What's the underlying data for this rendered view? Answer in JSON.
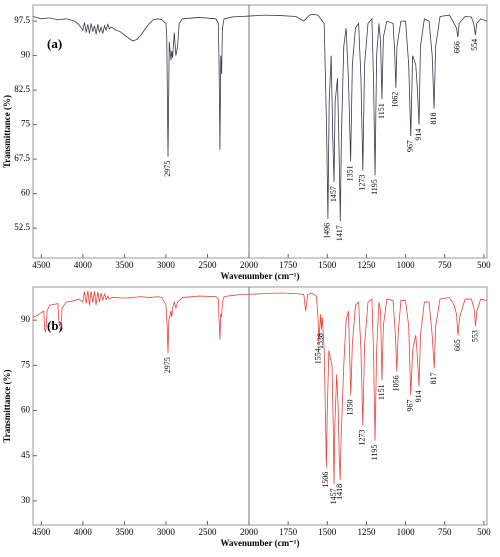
{
  "chart_data": [
    {
      "type": "line",
      "panel_label": "(a)",
      "xlabel": "Wavenumber (cm⁻¹)",
      "ylabel": "Transmittance (%)",
      "xlim": [
        4600,
        480
      ],
      "ylim": [
        46,
        101
      ],
      "x_scale_break": 2000,
      "xticks": [
        4500,
        4000,
        3500,
        3000,
        2500,
        2000,
        1750,
        1500,
        1250,
        1000,
        750,
        500
      ],
      "yticks": [
        52.5,
        60,
        67.5,
        75,
        82.5,
        90,
        97.5
      ],
      "x": [
        4600,
        4500,
        4400,
        4300,
        4200,
        4100,
        4050,
        4000,
        3980,
        3960,
        3940,
        3920,
        3900,
        3880,
        3860,
        3840,
        3820,
        3800,
        3780,
        3760,
        3740,
        3720,
        3700,
        3680,
        3660,
        3640,
        3620,
        3600,
        3550,
        3500,
        3450,
        3400,
        3350,
        3300,
        3250,
        3200,
        3150,
        3100,
        3050,
        3000,
        2990,
        2975,
        2960,
        2940,
        2930,
        2920,
        2900,
        2880,
        2870,
        2860,
        2840,
        2800,
        2600,
        2400,
        2370,
        2360,
        2350,
        2340,
        2330,
        2320,
        2300,
        2200,
        2100,
        2000,
        1900,
        1800,
        1700,
        1650,
        1620,
        1600,
        1560,
        1520,
        1505,
        1496,
        1488,
        1475,
        1465,
        1457,
        1450,
        1435,
        1425,
        1417,
        1410,
        1395,
        1380,
        1365,
        1351,
        1340,
        1320,
        1300,
        1285,
        1273,
        1262,
        1240,
        1215,
        1205,
        1195,
        1185,
        1170,
        1160,
        1151,
        1142,
        1120,
        1080,
        1070,
        1062,
        1055,
        1030,
        1000,
        980,
        967,
        955,
        935,
        925,
        914,
        905,
        880,
        850,
        830,
        818,
        808,
        780,
        720,
        690,
        675,
        666,
        658,
        620,
        580,
        565,
        554,
        545,
        520,
        480
      ],
      "series": [
        {
          "color": "#3a3a4a",
          "values": [
            98.5,
            98,
            98.2,
            97.8,
            98,
            97.5,
            96.8,
            95.5,
            97.2,
            95,
            96.8,
            94.8,
            97,
            95.2,
            96.5,
            94.6,
            96.8,
            95,
            96.2,
            94.8,
            96.5,
            95.5,
            96.8,
            95.8,
            96.2,
            96,
            95.8,
            95.5,
            95.2,
            94.5,
            93.8,
            93.2,
            93.5,
            94.5,
            95.8,
            97,
            97.8,
            98,
            97.8,
            97,
            94,
            68,
            93,
            89,
            91,
            89.5,
            95,
            90,
            91,
            92,
            97,
            98,
            98.3,
            98,
            97,
            88,
            69.5,
            90,
            86,
            96,
            98,
            98.4,
            98.5,
            98.6,
            98.8,
            98.7,
            98.5,
            97.5,
            98.6,
            99,
            98.8,
            97,
            75,
            54.5,
            80,
            90,
            72,
            62.5,
            80,
            85,
            70,
            54,
            72,
            92,
            96,
            85,
            67,
            88,
            96,
            97,
            85,
            65,
            88,
            97,
            98,
            85,
            64,
            90,
            97,
            93,
            80.5,
            94,
            97.5,
            97,
            91,
            83,
            92,
            97.5,
            97.5,
            88,
            72.5,
            90,
            88,
            83,
            75,
            92,
            98,
            97.5,
            90,
            78.5,
            92,
            98.5,
            98.8,
            97,
            96,
            94,
            97,
            98.5,
            98.4,
            97,
            94.5,
            97,
            98,
            97.5
          ]
        }
      ],
      "peaks": [
        2975,
        1496,
        1457,
        1417,
        1351,
        1273,
        1195,
        1151,
        1062,
        967,
        914,
        818,
        666,
        554
      ]
    },
    {
      "type": "line",
      "panel_label": "(b)",
      "xlabel": "Wavenumber (cm⁻¹)",
      "ylabel": "Transmittance (%)",
      "xlim": [
        4600,
        480
      ],
      "ylim": [
        22,
        101
      ],
      "x_scale_break": 2000,
      "xticks": [
        4500,
        4000,
        3500,
        3000,
        2500,
        2000,
        1750,
        1500,
        1250,
        1000,
        750,
        500
      ],
      "yticks": [
        30,
        45,
        60,
        75,
        90
      ],
      "x": [
        4600,
        4550,
        4500,
        4470,
        4460,
        4450,
        4440,
        4430,
        4400,
        4300,
        4290,
        4280,
        4270,
        4260,
        4250,
        4200,
        4100,
        4050,
        4000,
        3980,
        3960,
        3940,
        3920,
        3900,
        3880,
        3860,
        3840,
        3820,
        3800,
        3780,
        3760,
        3740,
        3720,
        3700,
        3680,
        3650,
        3600,
        3500,
        3400,
        3300,
        3200,
        3100,
        3050,
        3000,
        2985,
        2975,
        2965,
        2940,
        2930,
        2920,
        2900,
        2880,
        2870,
        2860,
        2800,
        2600,
        2400,
        2370,
        2360,
        2350,
        2340,
        2330,
        2320,
        2300,
        2200,
        2100,
        2000,
        1900,
        1800,
        1700,
        1650,
        1638,
        1625,
        1600,
        1570,
        1560,
        1554,
        1548,
        1542,
        1538,
        1532,
        1520,
        1512,
        1506,
        1500,
        1490,
        1470,
        1462,
        1457,
        1452,
        1440,
        1430,
        1424,
        1418,
        1412,
        1395,
        1380,
        1365,
        1350,
        1340,
        1320,
        1300,
        1285,
        1273,
        1262,
        1240,
        1215,
        1205,
        1195,
        1185,
        1170,
        1160,
        1151,
        1142,
        1120,
        1080,
        1065,
        1056,
        1048,
        1030,
        1000,
        980,
        967,
        955,
        935,
        925,
        914,
        905,
        880,
        850,
        830,
        817,
        808,
        780,
        720,
        690,
        675,
        665,
        655,
        620,
        580,
        563,
        553,
        545,
        520,
        480
      ],
      "series": [
        {
          "color": "#e8443f",
          "values": [
            91,
            91.5,
            92.5,
            93,
            87,
            86,
            88,
            93,
            95,
            95.5,
            90,
            88,
            89,
            87.5,
            94,
            96,
            96.5,
            97,
            96,
            99.5,
            95.5,
            99.8,
            95,
            99.5,
            95.8,
            99.6,
            95,
            99.4,
            96,
            99,
            96.5,
            98.8,
            96.8,
            98,
            97,
            97.5,
            97.5,
            97.3,
            97.5,
            97.8,
            97.5,
            97.8,
            97.5,
            95,
            88,
            79,
            90,
            93,
            91,
            94,
            96,
            94,
            95,
            96,
            97.5,
            98,
            97.8,
            97,
            90,
            83.5,
            92,
            91,
            96,
            97.8,
            98.2,
            98.5,
            98.6,
            98.8,
            99,
            98.8,
            98.5,
            93,
            98.5,
            99,
            98,
            92,
            82,
            88,
            92,
            87,
            91,
            80,
            60,
            41,
            60,
            80,
            75,
            55,
            35.5,
            55,
            72,
            60,
            45,
            37,
            50,
            75,
            90,
            93,
            65,
            82,
            95,
            96,
            80,
            55,
            82,
            96,
            97,
            80,
            50,
            80,
            96,
            93,
            70,
            88,
            97,
            96.5,
            85,
            73,
            85,
            96.5,
            96.5,
            88,
            65,
            80,
            85,
            78,
            68,
            85,
            96,
            96,
            85,
            74,
            88,
            97,
            97.5,
            95,
            92,
            85,
            91,
            97,
            97,
            94,
            88,
            93,
            97,
            96.5
          ]
        }
      ],
      "peaks": [
        2975,
        1554,
        1538,
        1506,
        1457,
        1418,
        1350,
        1273,
        1195,
        1151,
        1056,
        967,
        914,
        817,
        665,
        553
      ]
    }
  ]
}
